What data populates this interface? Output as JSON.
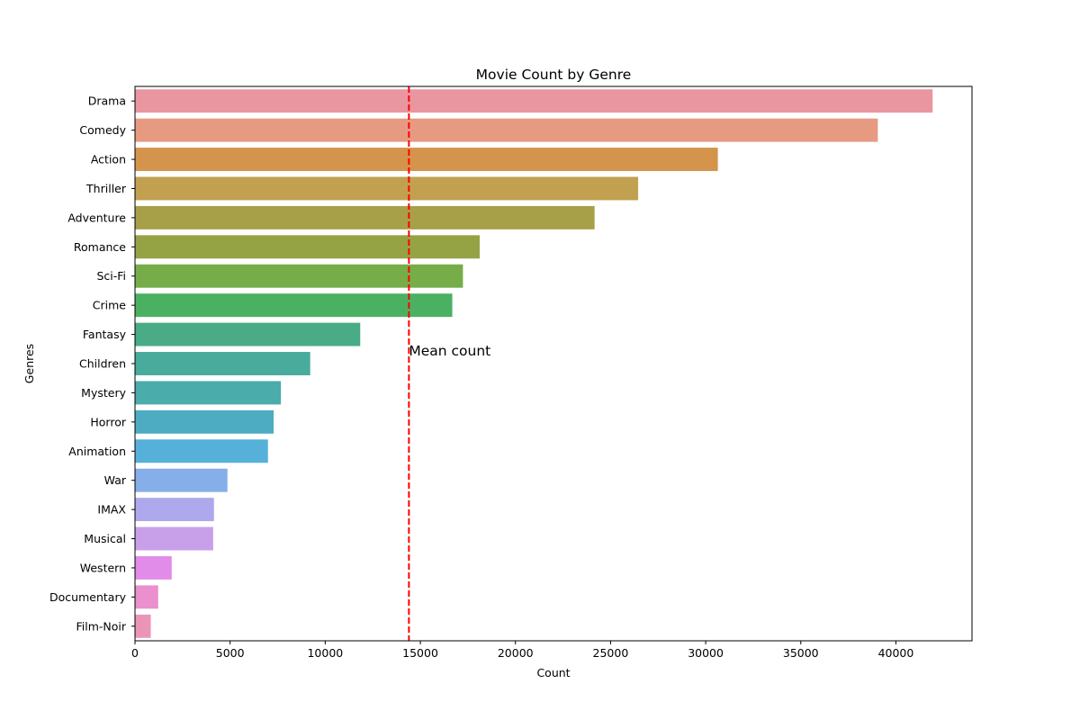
{
  "chart_data": {
    "type": "bar",
    "orientation": "horizontal",
    "title": "Movie Count by Genre",
    "xlabel": "Count",
    "ylabel": "Genres",
    "xlim": [
      0,
      44000
    ],
    "xticks": [
      0,
      5000,
      10000,
      15000,
      20000,
      25000,
      30000,
      35000,
      40000
    ],
    "categories": [
      "Drama",
      "Comedy",
      "Action",
      "Thriller",
      "Adventure",
      "Romance",
      "Sci-Fi",
      "Crime",
      "Fantasy",
      "Children",
      "Mystery",
      "Horror",
      "Animation",
      "War",
      "IMAX",
      "Musical",
      "Western",
      "Documentary",
      "Film-Noir"
    ],
    "values": [
      41930,
      39050,
      30640,
      26450,
      24160,
      18120,
      17240,
      16680,
      11840,
      9210,
      7670,
      7290,
      6990,
      4860,
      4150,
      4110,
      1930,
      1220,
      830
    ],
    "colors": [
      "#ea96a0",
      "#e79a82",
      "#d4944b",
      "#c1a14f",
      "#a7a048",
      "#96a344",
      "#77ad49",
      "#4bb162",
      "#4aab87",
      "#48ab9b",
      "#4aacab",
      "#4dacc1",
      "#55b1d9",
      "#86aee8",
      "#aea8ec",
      "#c8a0e9",
      "#e18ce8",
      "#e990cd",
      "#ea95b8"
    ],
    "reference_line": {
      "value": 14400,
      "label": "Mean count",
      "color": "#ff0000",
      "style": "dashed"
    },
    "grid": false,
    "legend": "none"
  }
}
